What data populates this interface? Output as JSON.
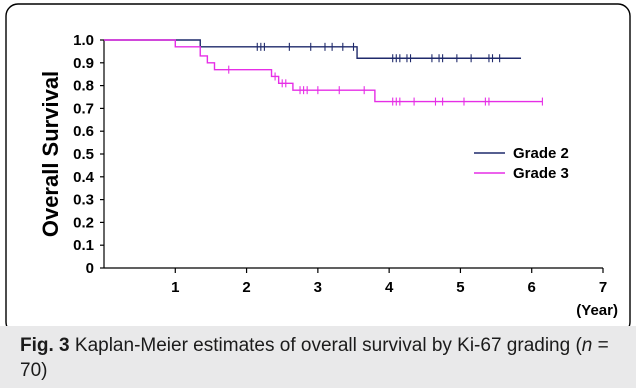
{
  "chart_data": {
    "type": "line",
    "subtype": "kaplan-meier",
    "title": "",
    "xlabel": "(Year)",
    "ylabel": "Overall Survival",
    "xlim": [
      0,
      7
    ],
    "ylim": [
      0,
      1.0
    ],
    "x_ticks": [
      "1",
      "2",
      "3",
      "4",
      "5",
      "6",
      "7"
    ],
    "y_ticks": [
      "0",
      "0.1",
      "0.2",
      "0.3",
      "0.4",
      "0.5",
      "0.6",
      "0.7",
      "0.8",
      "0.9",
      "1.0"
    ],
    "grid": false,
    "legend_position": "right",
    "series": [
      {
        "name": "Grade 2",
        "color": "#1f2a6b",
        "steps": [
          [
            0,
            1.0
          ],
          [
            1.35,
            0.97
          ],
          [
            3.55,
            0.92
          ],
          [
            5.85,
            0.92
          ]
        ],
        "censored": [
          2.15,
          2.2,
          2.25,
          2.6,
          2.9,
          3.1,
          3.2,
          3.35,
          3.5,
          4.05,
          4.1,
          4.15,
          4.25,
          4.3,
          4.6,
          4.7,
          4.75,
          4.95,
          5.15,
          5.4,
          5.45,
          5.55
        ]
      },
      {
        "name": "Grade 3",
        "color": "#e62ee6",
        "steps": [
          [
            0,
            1.0
          ],
          [
            1.0,
            0.97
          ],
          [
            1.35,
            0.93
          ],
          [
            1.45,
            0.9
          ],
          [
            1.55,
            0.87
          ],
          [
            2.35,
            0.84
          ],
          [
            2.45,
            0.81
          ],
          [
            2.65,
            0.78
          ],
          [
            3.8,
            0.73
          ],
          [
            6.15,
            0.73
          ]
        ],
        "censored": [
          1.75,
          2.4,
          2.5,
          2.55,
          2.75,
          2.8,
          2.85,
          3.0,
          3.3,
          3.65,
          4.05,
          4.1,
          4.15,
          4.35,
          4.65,
          4.75,
          5.05,
          5.35,
          5.4,
          6.15
        ]
      }
    ]
  },
  "caption": {
    "label": "Fig. 3",
    "text": " Kaplan-Meier estimates of overall survival by Ki-67 grading (",
    "n_symbol": "n",
    "n_value": " = 70)"
  }
}
